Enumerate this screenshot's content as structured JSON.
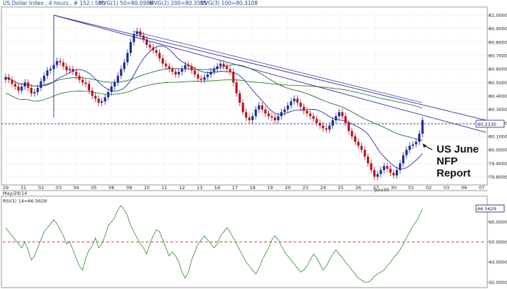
{
  "header": {
    "title": "US Dollar Index , 4 hours , # 152 / 500",
    "mvg1": "MVG(1) 50=80.0986",
    "mvg2": "MVG(2) 200=80.3515",
    "mvg3": "MVG(3) 100=80.3108"
  },
  "annotation": {
    "lines": [
      "US June",
      "NFP",
      "Report"
    ]
  },
  "colors": {
    "up_candle": "#1a2aa0",
    "down_candle": "#c0101c",
    "mvg1_color": "#2030a0",
    "mvg2_color": "#2e7d2e",
    "mvg3_color": "#1d6d3a",
    "trendline_color": "#2a2a9a",
    "rsi_line": "#3a9a3a",
    "rsi_reference": "#d33333",
    "current_price_box": "#ffffff"
  },
  "chart_data": [
    {
      "type": "candlestick",
      "title": "US Dollar Index , 4 hours",
      "ylim": [
        79.75,
        81.05
      ],
      "y_ticks": [
        "81.0000",
        "80.9000",
        "80.8000",
        "80.7000",
        "80.6000",
        "80.5000",
        "80.4000",
        "80.3000",
        "80.2000",
        "80.1000",
        "80.0000",
        "79.9000",
        "79.8000"
      ],
      "x_ticks": [
        "29",
        "31",
        "02",
        "03",
        "04",
        "05",
        "06",
        "09",
        "10",
        "11",
        "12",
        "13",
        "16",
        "17",
        "18",
        "19",
        "20",
        "23",
        "24",
        "25",
        "26",
        "27",
        "30",
        "01",
        "02",
        "03",
        "06",
        "07"
      ],
      "x_sublabels": [
        "May/29/14",
        "Jun/30"
      ],
      "current_price": "80.2330",
      "closes": [
        80.54,
        80.52,
        80.49,
        80.47,
        80.44,
        80.47,
        80.5,
        80.46,
        80.42,
        80.43,
        80.46,
        80.51,
        80.55,
        80.59,
        80.6,
        80.63,
        80.66,
        80.65,
        80.62,
        80.59,
        80.6,
        80.58,
        80.55,
        80.52,
        80.5,
        80.49,
        80.44,
        80.4,
        80.38,
        80.35,
        80.36,
        80.39,
        80.43,
        80.47,
        80.5,
        80.55,
        80.6,
        80.65,
        80.72,
        80.8,
        80.86,
        80.88,
        80.85,
        80.82,
        80.78,
        80.76,
        80.74,
        80.72,
        80.68,
        80.64,
        80.62,
        80.6,
        80.58,
        80.56,
        80.58,
        80.6,
        80.63,
        80.62,
        80.59,
        80.56,
        80.53,
        80.52,
        80.54,
        80.56,
        80.58,
        80.6,
        80.62,
        80.64,
        80.62,
        80.6,
        80.58,
        80.5,
        80.42,
        80.35,
        80.28,
        80.24,
        80.22,
        80.25,
        80.3,
        80.33,
        80.3,
        80.27,
        80.25,
        80.24,
        80.22,
        80.25,
        80.28,
        80.3,
        80.33,
        80.36,
        80.38,
        80.35,
        80.32,
        80.29,
        80.27,
        80.25,
        80.23,
        80.2,
        80.18,
        80.16,
        80.15,
        80.18,
        80.22,
        80.25,
        80.28,
        80.25,
        80.2,
        80.14,
        80.1,
        80.06,
        80.03,
        80.0,
        79.95,
        79.9,
        79.85,
        79.8,
        79.82,
        79.85,
        79.88,
        79.86,
        79.83,
        79.81,
        79.85,
        79.9,
        79.96,
        80.0,
        80.03,
        80.04,
        80.06,
        80.12,
        80.22
      ]
    },
    {
      "type": "line",
      "title": "RSI(1) 14=66.5629",
      "ylim": [
        28,
        72
      ],
      "y_ticks": [
        "60.0000",
        "50.0000",
        "40.0000",
        "30.0000"
      ],
      "reference_line": 50,
      "current_value": "66.5629",
      "values": [
        57,
        55,
        53,
        51,
        49,
        47,
        50,
        46,
        41,
        43,
        47,
        51,
        55,
        57,
        59,
        61,
        59,
        56,
        53,
        49,
        50,
        46,
        42,
        38,
        36,
        42,
        46,
        48,
        52,
        47,
        49,
        53,
        58,
        60,
        62,
        66,
        68,
        66,
        63,
        58,
        55,
        52,
        49,
        47,
        44,
        49,
        53,
        56,
        55,
        51,
        47,
        43,
        45,
        43,
        40,
        35,
        32,
        35,
        41,
        45,
        49,
        51,
        53,
        51,
        49,
        47,
        49,
        53,
        55,
        57,
        55,
        52,
        49,
        46,
        43,
        40,
        38,
        36,
        34,
        37,
        41,
        44,
        47,
        51,
        53,
        51,
        48,
        45,
        43,
        41,
        39,
        37,
        35,
        36,
        38,
        41,
        44,
        42,
        39,
        36,
        38,
        41,
        44,
        46,
        44,
        42,
        40,
        38,
        36,
        34,
        32,
        31,
        30,
        30,
        31,
        33,
        34,
        35,
        36,
        38,
        40,
        42,
        44,
        46,
        49,
        52,
        55,
        58,
        60,
        63,
        66.5
      ]
    }
  ]
}
